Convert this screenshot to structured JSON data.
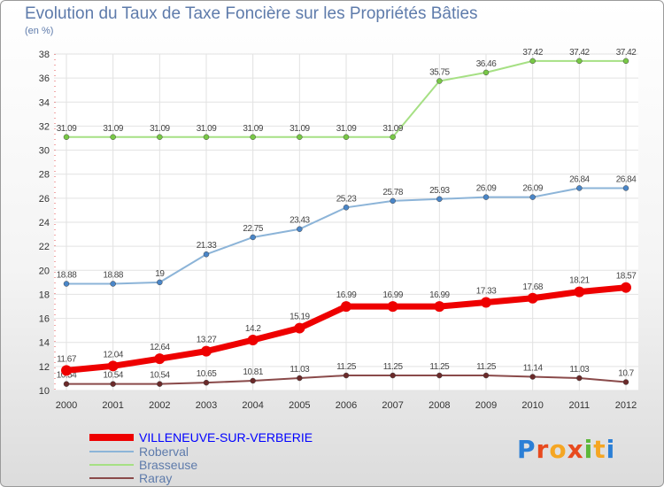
{
  "chart_data": {
    "type": "line",
    "title": "Evolution du Taux de Taxe Foncière sur les Propriétés Bâties",
    "subtitle": "(en %)",
    "x": [
      "2000",
      "2001",
      "2002",
      "2003",
      "2004",
      "2005",
      "2006",
      "2007",
      "2008",
      "2009",
      "2010",
      "2011",
      "2012"
    ],
    "ylim": [
      10,
      38
    ],
    "yticks": [
      10,
      12,
      14,
      16,
      18,
      20,
      22,
      24,
      26,
      28,
      30,
      32,
      34,
      36,
      38
    ],
    "grid": true,
    "legend_position": "bottom-left",
    "series": [
      {
        "name": "VILLENEUVE-SUR-VERBERIE",
        "color": "#ee0000",
        "marker": "#ee0000",
        "width": 7,
        "values": [
          11.67,
          12.04,
          12.64,
          13.27,
          14.2,
          15.19,
          16.99,
          16.99,
          16.99,
          17.33,
          17.68,
          18.21,
          18.57
        ],
        "labels": [
          "11.67",
          "12.04",
          "12.64",
          "13.27",
          "14.2",
          "15.19",
          "16.99",
          "16.99",
          "16.99",
          "17.33",
          "17.68",
          "18.21",
          "18.57"
        ]
      },
      {
        "name": "Roberval",
        "color": "#8cb4d8",
        "marker": "#4a86c8",
        "width": 2,
        "values": [
          18.88,
          18.88,
          19,
          21.33,
          22.75,
          23.43,
          25.23,
          25.78,
          25.93,
          26.09,
          26.09,
          26.84,
          26.84
        ],
        "labels": [
          "18.88",
          "18.88",
          "19",
          "21.33",
          "22.75",
          "23.43",
          "25.23",
          "25.78",
          "25.93",
          "26.09",
          "26.09",
          "26.84",
          "26.84"
        ]
      },
      {
        "name": "Brasseuse",
        "color": "#a6e084",
        "marker": "#78c846",
        "width": 2,
        "values": [
          31.09,
          31.09,
          31.09,
          31.09,
          31.09,
          31.09,
          31.09,
          31.09,
          35.75,
          36.46,
          37.42,
          37.42,
          37.42
        ],
        "labels": [
          "31.09",
          "31.09",
          "31.09",
          "31.09",
          "31.09",
          "31.09",
          "31.09",
          "31.09",
          "35.75",
          "36.46",
          "37.42",
          "37.42",
          "37.42"
        ]
      },
      {
        "name": "Raray",
        "color": "#8a4a4a",
        "marker": "#6b2a2a",
        "width": 2,
        "values": [
          10.54,
          10.54,
          10.54,
          10.65,
          10.81,
          11.03,
          11.25,
          11.25,
          11.25,
          11.25,
          11.14,
          11.03,
          10.7
        ],
        "labels": [
          "10.54",
          "10.54",
          "10.54",
          "10.65",
          "10.81",
          "11.03",
          "11.25",
          "11.25",
          "11.25",
          "11.25",
          "11.14",
          "11.03",
          "10.7"
        ]
      }
    ],
    "legend_colors": [
      "#0000ff",
      "#5e7bab",
      "#5e7bab",
      "#5e7bab"
    ]
  },
  "logo": {
    "text": [
      "P",
      "r",
      "o",
      "x",
      "i",
      "t",
      "i"
    ],
    "colors": [
      "#2b7fd6",
      "#e84a1e",
      "#f5a623",
      "#e84a1e",
      "#5cb83a",
      "#f5a623",
      "#2b7fd6"
    ]
  }
}
